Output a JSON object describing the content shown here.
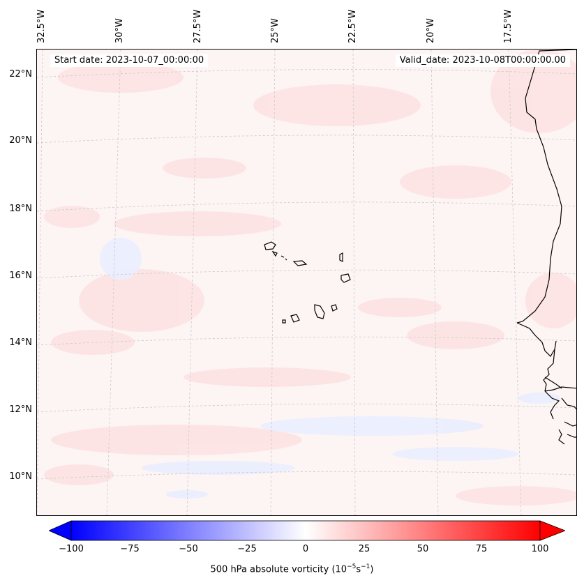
{
  "info": {
    "start_date": "Start date: 2023-10-07_00:00:00",
    "valid_date": "Valid_date: 2023-10-08T00:00:00.00"
  },
  "latitude_labels": [
    "22°N",
    "20°N",
    "18°N",
    "16°N",
    "14°N",
    "12°N",
    "10°N"
  ],
  "longitude_labels": [
    "32.5°W",
    "30°W",
    "27.5°W",
    "25°W",
    "22.5°W",
    "20°W",
    "17.5°W"
  ],
  "colorbar": {
    "min": -100,
    "max": 100,
    "ticks": [
      "−100",
      "−75",
      "−50",
      "−25",
      "0",
      "25",
      "50",
      "75",
      "100"
    ],
    "label_main": "500 hPa absolute vorticity (10",
    "label_exp1": "−5",
    "label_mid": "s",
    "label_exp2": "−1",
    "label_end": ")",
    "colors": {
      "negative": "#0000ff",
      "zero": "#ffffff",
      "positive": "#ff0000"
    }
  },
  "map_colors": {
    "coast": "#000000",
    "grid": "#c8c8c8",
    "background": "#fdf4f4"
  }
}
